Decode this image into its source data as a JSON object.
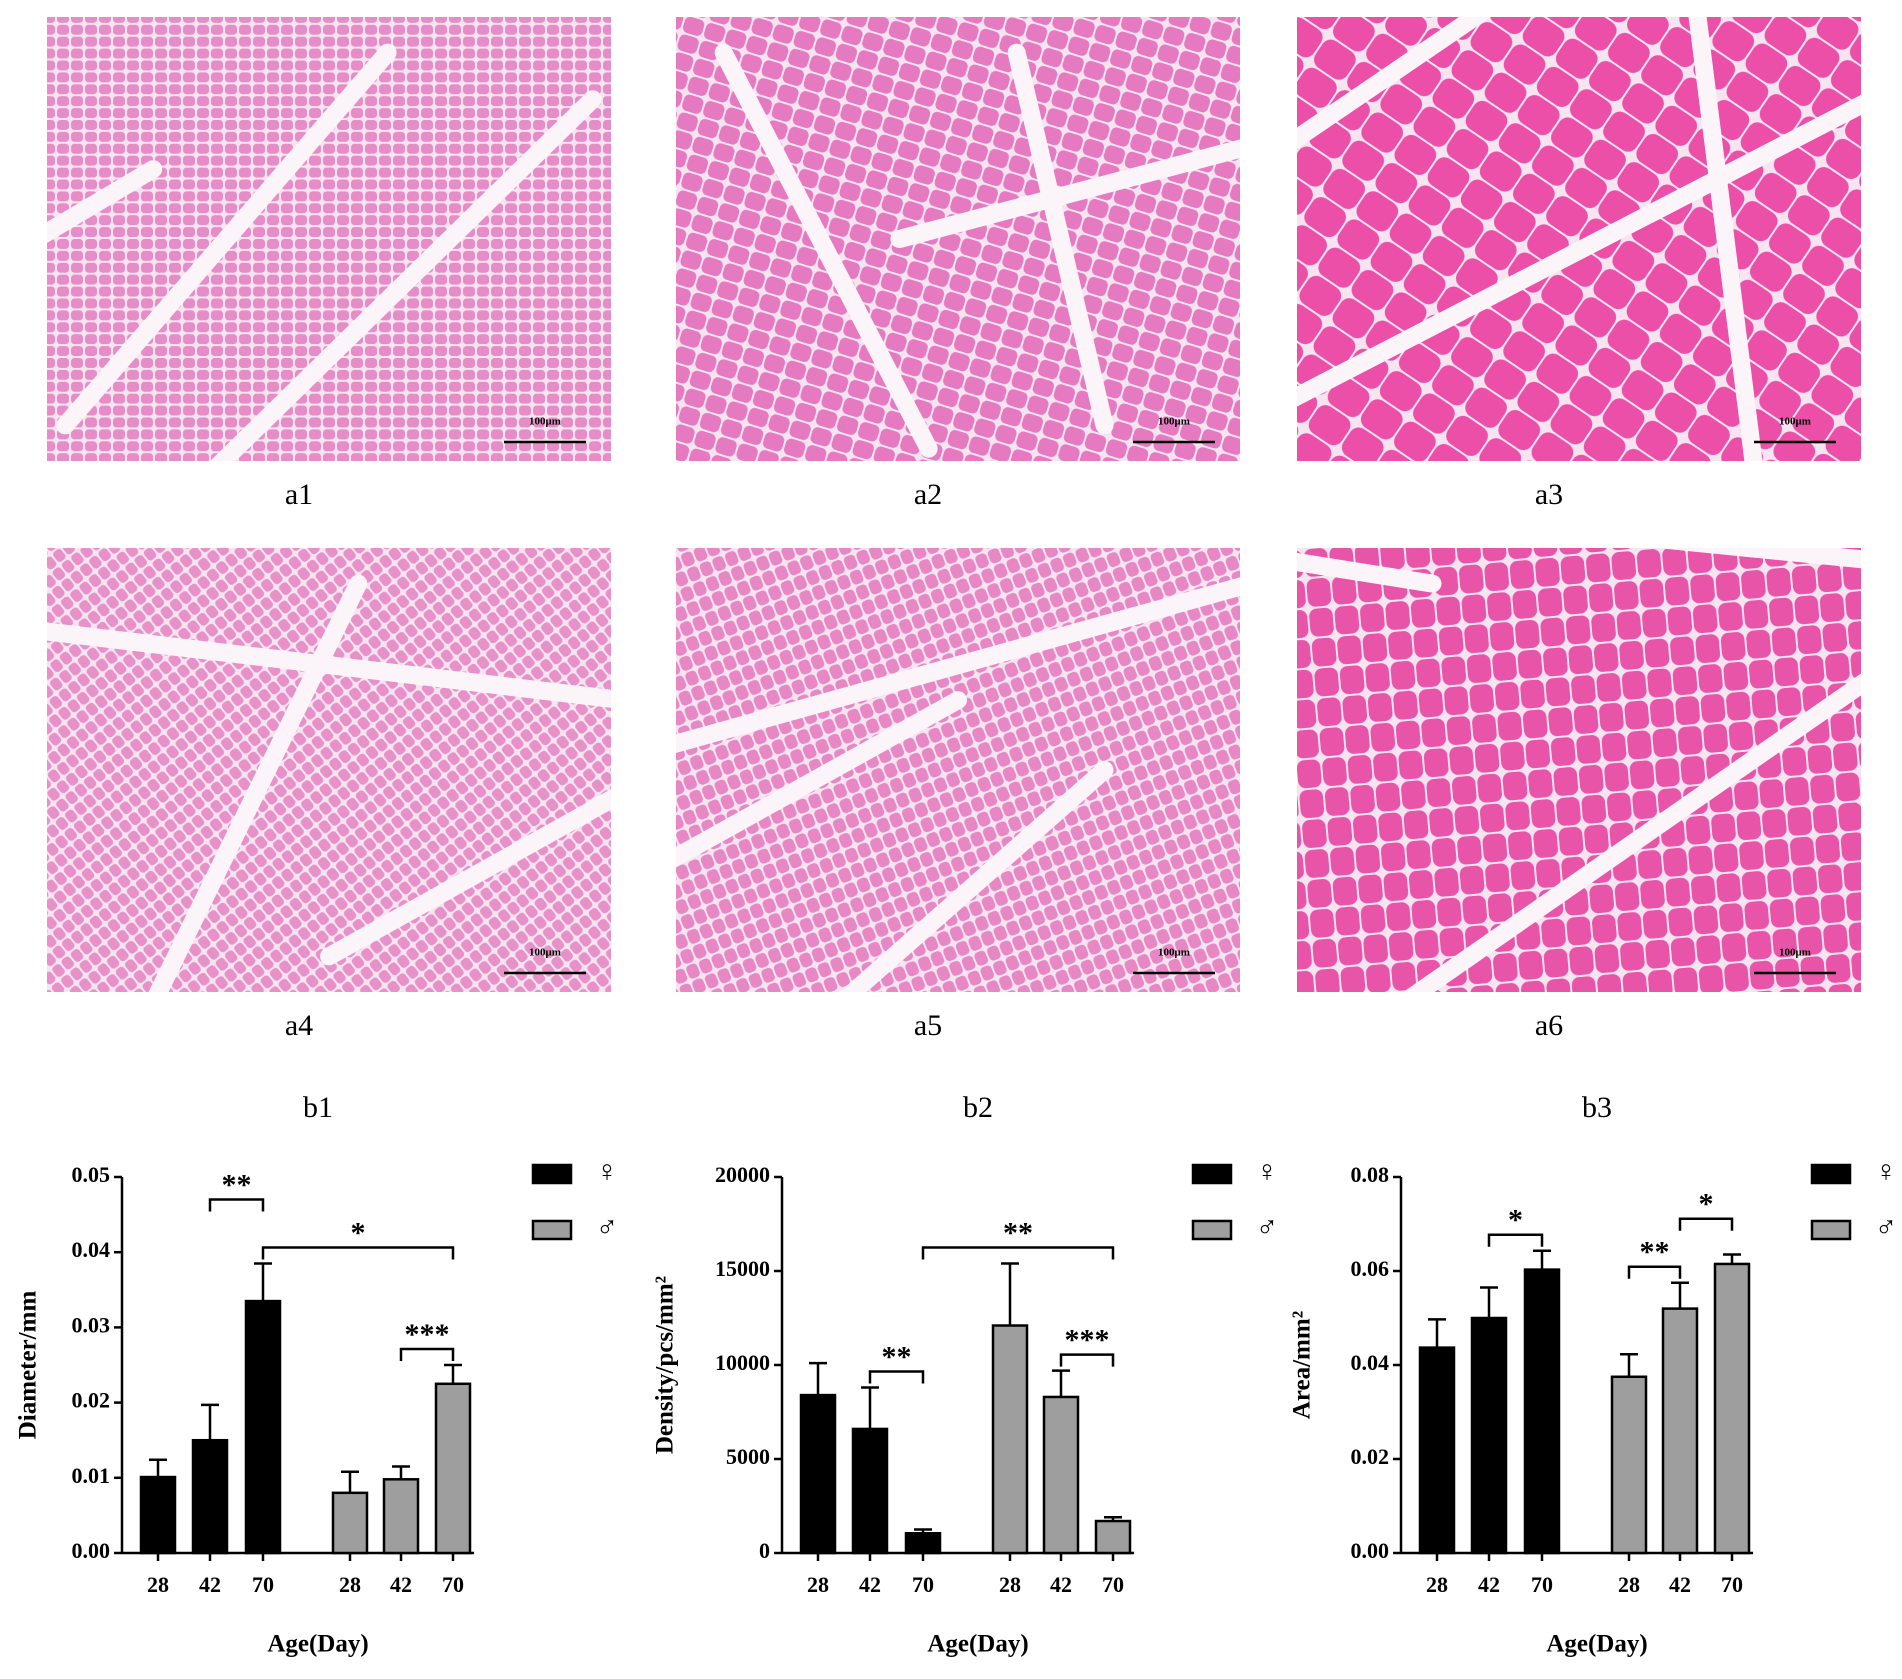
{
  "panels": [
    {
      "label": "a1",
      "scale_bar": "100μm",
      "color": "#e68cc6"
    },
    {
      "label": "a2",
      "scale_bar": "100μm",
      "color": "#e67ac0"
    },
    {
      "label": "a3",
      "scale_bar": "100μm",
      "color": "#ec4fa8"
    },
    {
      "label": "a4",
      "scale_bar": "100μm",
      "color": "#e891c9"
    },
    {
      "label": "a5",
      "scale_bar": "100μm",
      "color": "#e787c4"
    },
    {
      "label": "a6",
      "scale_bar": "100μm",
      "color": "#e854a8"
    }
  ],
  "chart_data": [
    {
      "type": "bar",
      "title": "b1",
      "y_label": "Diameter/mm",
      "x_label": "Age(Day)",
      "categories": [
        "28",
        "42",
        "70"
      ],
      "series": [
        {
          "name": "♀",
          "color": "#000000",
          "values": [
            0.0101,
            0.015,
            0.0335
          ],
          "errors": [
            0.0023,
            0.0047,
            0.005
          ]
        },
        {
          "name": "♂",
          "color": "#9e9e9e",
          "values": [
            0.008,
            0.0098,
            0.0225
          ],
          "errors": [
            0.0028,
            0.0017,
            0.0025
          ]
        }
      ],
      "ylim": [
        0,
        0.05
      ],
      "yticks": [
        {
          "value": 0,
          "label": "0.00"
        },
        0.01,
        0.02,
        0.03,
        0.04,
        0.05
      ],
      "annotations": [
        {
          "text": "*",
          "between": [
            2,
            5
          ]
        },
        {
          "text": "**",
          "between": [
            1,
            2
          ]
        },
        {
          "text": "***",
          "between": [
            4,
            5
          ]
        }
      ]
    },
    {
      "type": "bar",
      "title": "b2",
      "y_label": "Density/pcs/mm²",
      "x_label": "Age(Day)",
      "categories": [
        "28",
        "42",
        "70"
      ],
      "series": [
        {
          "name": "♀",
          "color": "#000000",
          "values": [
            8400,
            6600,
            1050
          ],
          "errors": [
            1700,
            2200,
            200
          ]
        },
        {
          "name": "♂",
          "color": "#9e9e9e",
          "values": [
            12100,
            8300,
            1700
          ],
          "errors": [
            3300,
            1400,
            200
          ]
        }
      ],
      "ylim": [
        0,
        20000
      ],
      "yticks": [
        0,
        5000,
        10000,
        15000,
        20000
      ],
      "annotations": [
        {
          "text": "**",
          "between": [
            2,
            5
          ]
        },
        {
          "text": "**",
          "between": [
            1,
            2
          ]
        },
        {
          "text": "***",
          "between": [
            4,
            5
          ]
        }
      ]
    },
    {
      "type": "bar",
      "title": "b3",
      "y_label": "Area/mm²",
      "x_label": "Age(Day)",
      "categories": [
        "28",
        "42",
        "70"
      ],
      "series": [
        {
          "name": "♀",
          "color": "#000000",
          "values": [
            0.0437,
            0.05,
            0.0603
          ],
          "errors": [
            0.006,
            0.0065,
            0.004
          ]
        },
        {
          "name": "♂",
          "color": "#9e9e9e",
          "values": [
            0.0375,
            0.052,
            0.0615
          ],
          "errors": [
            0.0048,
            0.0055,
            0.002
          ]
        }
      ],
      "ylim": [
        0,
        0.08
      ],
      "yticks": [
        {
          "value": 0,
          "label": "0.00"
        },
        0.02,
        0.04,
        0.06,
        0.08
      ],
      "annotations": [
        {
          "text": "*",
          "between": [
            1,
            2
          ]
        },
        {
          "text": "**",
          "between": [
            3,
            4
          ]
        },
        {
          "text": "*",
          "between": [
            4,
            5
          ]
        }
      ]
    }
  ]
}
